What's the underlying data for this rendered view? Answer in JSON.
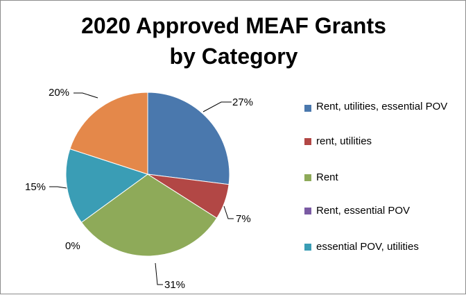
{
  "chart_data": {
    "type": "pie",
    "title_lines": [
      "2020 Approved MEAF Grants",
      "by Category"
    ],
    "categories": [
      "Rent, utilities, essential POV",
      "rent, utilities",
      "Rent",
      "Rent, essential POV",
      "essential POV, utilities",
      ""
    ],
    "values": [
      27,
      7,
      31,
      0,
      15,
      20
    ],
    "value_labels": [
      "27%",
      "7%",
      "31%",
      "0%",
      "15%",
      "20%"
    ],
    "colors": [
      "#4a78ad",
      "#b24745",
      "#8eaa59",
      "#7a5aa3",
      "#3a9db5",
      "#e4884a"
    ],
    "legend_position": "right"
  }
}
